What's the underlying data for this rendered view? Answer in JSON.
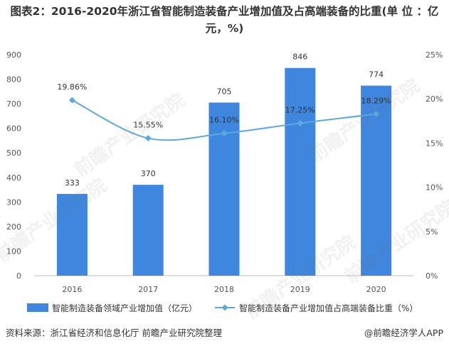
{
  "title": "图表2：2016-2020年浙江省智能制造装备产业增加值及占高端装备的比重(单 位 ：亿元，%)",
  "watermark": "前瞻产业研究院",
  "footer": {
    "source": "资料来源：浙江省经济和信息化厅 前瞻产业研究院整理",
    "brand": "@前瞻经济学人APP"
  },
  "colors": {
    "bar": "#3E86DE",
    "line": "#5BA9E0",
    "axis": "#BFBFBF"
  },
  "chart_data": {
    "type": "bar+line",
    "categories": [
      "2016",
      "2017",
      "2018",
      "2019",
      "2020"
    ],
    "series": [
      {
        "name": "智能制造装备领域产业增加值（亿元）",
        "type": "bar",
        "axis": "left",
        "values": [
          333,
          370,
          705,
          846,
          774
        ],
        "labels": [
          "333",
          "370",
          "705",
          "846",
          "774"
        ]
      },
      {
        "name": "智能制造装备产业增加值占高端装备比重（%）",
        "type": "line",
        "axis": "right",
        "values": [
          19.86,
          15.55,
          16.1,
          17.25,
          18.29
        ],
        "labels": [
          "19.86%",
          "15.55%",
          "16.10%",
          "17.25%",
          "18.29%"
        ]
      }
    ],
    "y_left": {
      "ylim": [
        0,
        900
      ],
      "ticks": [
        "0",
        "100",
        "200",
        "300",
        "400",
        "500",
        "600",
        "700",
        "800",
        "900"
      ]
    },
    "y_right": {
      "ylim": [
        0,
        25
      ],
      "ticks": [
        "0%",
        "5%",
        "10%",
        "15%",
        "20%",
        "25%"
      ]
    },
    "legend": "bottom",
    "grid": false
  }
}
